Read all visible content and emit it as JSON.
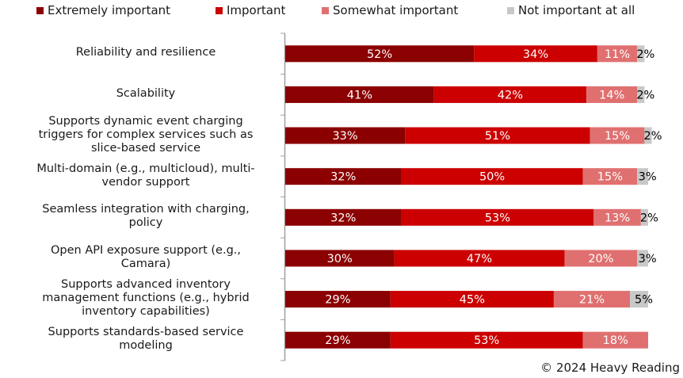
{
  "chart_data": {
    "type": "bar",
    "orientation": "horizontal",
    "stacked": true,
    "title": "",
    "xlabel": "",
    "ylabel": "",
    "xlim": [
      0,
      100
    ],
    "grid": false,
    "legend_position": "top",
    "categories": [
      "Reliability and resilience",
      "Scalability",
      "Supports dynamic event charging triggers for complex services such as slice-based service",
      "Multi-domain (e.g., multicloud), multi-vendor support",
      "Seamless integration with charging, policy",
      "Open API exposure support (e.g., Camara)",
      "Supports advanced inventory management functions (e.g., hybrid inventory capabilities)",
      "Supports standards-based service modeling"
    ],
    "category_lines": [
      [
        "Reliability and resilience"
      ],
      [
        "Scalability"
      ],
      [
        "Supports dynamic event charging",
        "triggers for complex services such as",
        "slice-based service"
      ],
      [
        "Multi-domain (e.g., multicloud), multi-",
        "vendor support"
      ],
      [
        "Seamless integration with charging,",
        "policy"
      ],
      [
        "Open API exposure support (e.g.,",
        "Camara)"
      ],
      [
        "Supports advanced inventory",
        "management functions (e.g., hybrid",
        "inventory capabilities)"
      ],
      [
        "Supports standards-based service",
        "modeling"
      ]
    ],
    "series": [
      {
        "name": "Extremely important",
        "color": "#8b0000",
        "label_color": "#ffffff",
        "values": [
          52,
          41,
          33,
          32,
          32,
          30,
          29,
          29
        ]
      },
      {
        "name": "Important",
        "color": "#cc0000",
        "label_color": "#ffffff",
        "values": [
          34,
          42,
          51,
          50,
          53,
          47,
          45,
          53
        ]
      },
      {
        "name": "Somewhat important",
        "color": "#e07070",
        "label_color": "#ffffff",
        "values": [
          11,
          14,
          15,
          15,
          13,
          20,
          21,
          18
        ]
      },
      {
        "name": "Not important at all",
        "color": "#c8c8c8",
        "label_color": "#000000",
        "values": [
          2,
          2,
          2,
          3,
          2,
          3,
          5,
          0
        ]
      }
    ],
    "value_suffix": "%"
  },
  "footer": {
    "copyright": "© 2024 Heavy Reading"
  }
}
